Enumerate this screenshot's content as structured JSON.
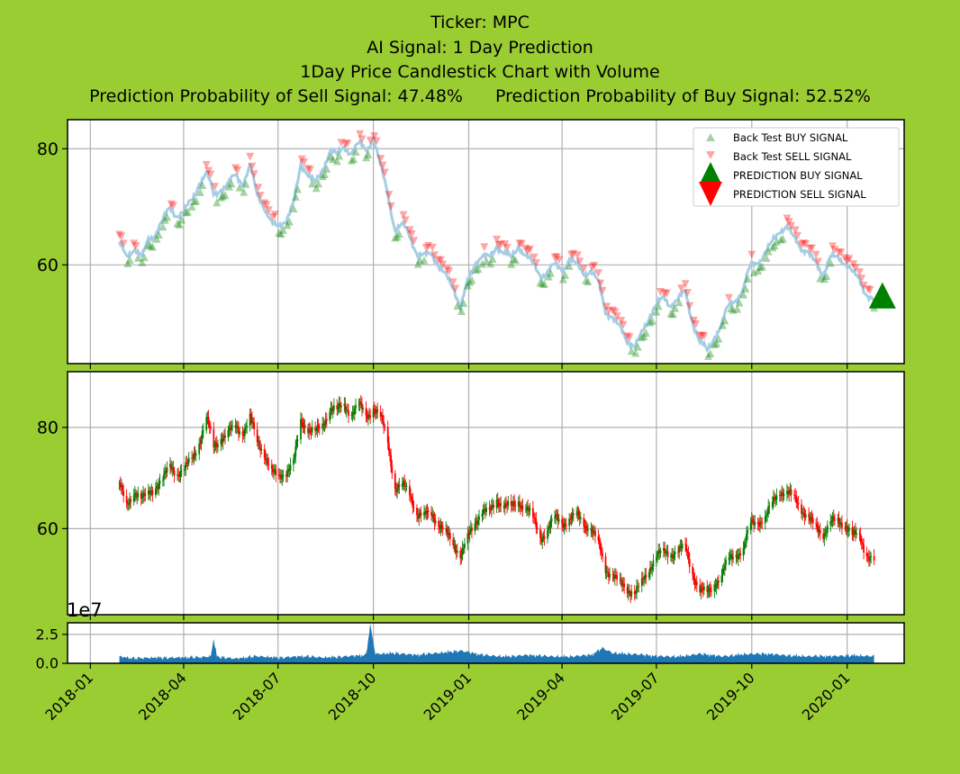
{
  "titles": {
    "ticker": "Ticker: MPC",
    "signal": "AI Signal: 1 Day Prediction",
    "chart": "1Day Price Candlestick Chart with Volume",
    "sell_prob": "Prediction Probability of Sell Signal: 47.48%",
    "buy_prob": "Prediction Probability of Buy Signal: 52.52%"
  },
  "colors": {
    "background": "#9acd32",
    "buy": "#008000",
    "sell": "#ff0000",
    "close_line": "#a6cde3",
    "volume": "#1f77b4",
    "grid": "#b0b0b0"
  },
  "chart_data": [
    {
      "type": "line",
      "panel": "signals",
      "xlim": [
        "2017-12-10",
        "2020-02-25"
      ],
      "ylim": [
        43,
        85
      ],
      "yticks": [
        60,
        80
      ],
      "grid": true,
      "legend": {
        "placement": "top-right",
        "entries": [
          "Back Test BUY SIGNAL",
          "Back Test SELL SIGNAL",
          "PREDICTION BUY SIGNAL",
          "PREDICTION SELL SIGNAL"
        ]
      },
      "close_series": [
        [
          "2018-01-29",
          64.0
        ],
        [
          "2018-02-05",
          61.0
        ],
        [
          "2018-02-12",
          63.0
        ],
        [
          "2018-02-20",
          61.5
        ],
        [
          "2018-02-26",
          64.0
        ],
        [
          "2018-03-05",
          65.5
        ],
        [
          "2018-03-12",
          68.0
        ],
        [
          "2018-03-19",
          69.5
        ],
        [
          "2018-03-26",
          68.5
        ],
        [
          "2018-04-02",
          69.5
        ],
        [
          "2018-04-09",
          71.0
        ],
        [
          "2018-04-16",
          74.0
        ],
        [
          "2018-04-23",
          76.0
        ],
        [
          "2018-04-30",
          72.0
        ],
        [
          "2018-05-07",
          73.0
        ],
        [
          "2018-05-14",
          74.0
        ],
        [
          "2018-05-21",
          75.5
        ],
        [
          "2018-05-28",
          74.0
        ],
        [
          "2018-06-04",
          77.0
        ],
        [
          "2018-06-11",
          72.0
        ],
        [
          "2018-06-18",
          70.0
        ],
        [
          "2018-06-25",
          67.0
        ],
        [
          "2018-07-02",
          66.5
        ],
        [
          "2018-07-09",
          68.0
        ],
        [
          "2018-07-16",
          70.5
        ],
        [
          "2018-07-23",
          77.0
        ],
        [
          "2018-07-30",
          76.0
        ],
        [
          "2018-08-06",
          74.0
        ],
        [
          "2018-08-13",
          76.0
        ],
        [
          "2018-08-20",
          80.0
        ],
        [
          "2018-08-27",
          79.0
        ],
        [
          "2018-09-03",
          80.0
        ],
        [
          "2018-09-10",
          79.5
        ],
        [
          "2018-09-17",
          81.0
        ],
        [
          "2018-09-24",
          79.5
        ],
        [
          "2018-10-01",
          82.0
        ],
        [
          "2018-10-08",
          77.0
        ],
        [
          "2018-10-15",
          72.0
        ],
        [
          "2018-10-22",
          66.0
        ],
        [
          "2018-10-29",
          67.0
        ],
        [
          "2018-11-05",
          65.0
        ],
        [
          "2018-11-12",
          62.0
        ],
        [
          "2018-11-19",
          61.5
        ],
        [
          "2018-11-26",
          62.0
        ],
        [
          "2018-12-03",
          60.0
        ],
        [
          "2018-12-10",
          58.0
        ],
        [
          "2018-12-17",
          56.0
        ],
        [
          "2018-12-24",
          53.0
        ],
        [
          "2018-12-31",
          57.0
        ],
        [
          "2019-01-07",
          60.0
        ],
        [
          "2019-01-14",
          62.0
        ],
        [
          "2019-01-21",
          61.0
        ],
        [
          "2019-01-28",
          63.0
        ],
        [
          "2019-02-04",
          62.5
        ],
        [
          "2019-02-11",
          61.0
        ],
        [
          "2019-02-18",
          63.0
        ],
        [
          "2019-02-25",
          62.0
        ],
        [
          "2019-03-04",
          60.0
        ],
        [
          "2019-03-11",
          58.0
        ],
        [
          "2019-03-18",
          59.0
        ],
        [
          "2019-03-25",
          60.0
        ],
        [
          "2019-04-01",
          59.0
        ],
        [
          "2019-04-08",
          61.0
        ],
        [
          "2019-04-15",
          60.0
        ],
        [
          "2019-04-22",
          58.5
        ],
        [
          "2019-04-29",
          59.0
        ],
        [
          "2019-05-06",
          57.0
        ],
        [
          "2019-05-13",
          52.0
        ],
        [
          "2019-05-20",
          51.0
        ],
        [
          "2019-05-27",
          49.0
        ],
        [
          "2019-06-03",
          47.0
        ],
        [
          "2019-06-10",
          46.0
        ],
        [
          "2019-06-17",
          48.0
        ],
        [
          "2019-06-24",
          51.0
        ],
        [
          "2019-07-01",
          53.5
        ],
        [
          "2019-07-08",
          54.0
        ],
        [
          "2019-07-15",
          53.0
        ],
        [
          "2019-07-22",
          54.5
        ],
        [
          "2019-07-29",
          55.0
        ],
        [
          "2019-08-05",
          50.0
        ],
        [
          "2019-08-12",
          47.0
        ],
        [
          "2019-08-19",
          45.0
        ],
        [
          "2019-08-26",
          47.5
        ],
        [
          "2019-09-02",
          50.0
        ],
        [
          "2019-09-09",
          53.0
        ],
        [
          "2019-09-16",
          54.0
        ],
        [
          "2019-09-23",
          56.0
        ],
        [
          "2019-09-30",
          60.0
        ],
        [
          "2019-10-07",
          60.5
        ],
        [
          "2019-10-14",
          62.0
        ],
        [
          "2019-10-21",
          64.0
        ],
        [
          "2019-10-28",
          66.0
        ],
        [
          "2019-11-04",
          66.5
        ],
        [
          "2019-11-11",
          64.5
        ],
        [
          "2019-11-18",
          63.0
        ],
        [
          "2019-11-25",
          62.0
        ],
        [
          "2019-12-02",
          60.0
        ],
        [
          "2019-12-09",
          58.5
        ],
        [
          "2019-12-16",
          61.5
        ],
        [
          "2019-12-23",
          61.0
        ],
        [
          "2019-12-30",
          60.5
        ],
        [
          "2020-01-06",
          59.0
        ],
        [
          "2020-01-13",
          57.0
        ],
        [
          "2020-01-20",
          55.0
        ],
        [
          "2020-01-27",
          54.0
        ]
      ],
      "prediction": {
        "signal": "buy",
        "date": "2020-02-04",
        "value": 54.5
      }
    },
    {
      "type": "line",
      "panel": "candlestick",
      "xlim": [
        "2017-12-10",
        "2020-02-25"
      ],
      "ylim": [
        43,
        91
      ],
      "yticks": [
        60,
        80
      ],
      "grid": true,
      "price_series": [
        [
          "2018-01-29",
          69.0
        ],
        [
          "2018-02-05",
          64.0
        ],
        [
          "2018-02-12",
          67.5
        ],
        [
          "2018-02-20",
          66.0
        ],
        [
          "2018-02-26",
          66.5
        ],
        [
          "2018-03-05",
          68.5
        ],
        [
          "2018-03-12",
          70.0
        ],
        [
          "2018-03-19",
          72.0
        ],
        [
          "2018-03-26",
          71.0
        ],
        [
          "2018-04-02",
          72.0
        ],
        [
          "2018-04-09",
          73.5
        ],
        [
          "2018-04-16",
          77.0
        ],
        [
          "2018-04-23",
          82.0
        ],
        [
          "2018-04-30",
          76.0
        ],
        [
          "2018-05-07",
          78.0
        ],
        [
          "2018-05-14",
          79.0
        ],
        [
          "2018-05-21",
          80.0
        ],
        [
          "2018-05-28",
          79.0
        ],
        [
          "2018-06-04",
          82.0
        ],
        [
          "2018-06-11",
          77.0
        ],
        [
          "2018-06-18",
          75.0
        ],
        [
          "2018-06-25",
          71.0
        ],
        [
          "2018-07-02",
          70.0
        ],
        [
          "2018-07-09",
          71.5
        ],
        [
          "2018-07-16",
          73.0
        ],
        [
          "2018-07-23",
          81.0
        ],
        [
          "2018-07-30",
          80.0
        ],
        [
          "2018-08-06",
          79.0
        ],
        [
          "2018-08-13",
          80.0
        ],
        [
          "2018-08-20",
          84.0
        ],
        [
          "2018-08-27",
          83.5
        ],
        [
          "2018-09-03",
          84.0
        ],
        [
          "2018-09-10",
          83.0
        ],
        [
          "2018-09-17",
          84.5
        ],
        [
          "2018-09-24",
          82.0
        ],
        [
          "2018-10-01",
          84.0
        ],
        [
          "2018-10-08",
          82.0
        ],
        [
          "2018-10-15",
          77.0
        ],
        [
          "2018-10-22",
          68.0
        ],
        [
          "2018-10-29",
          68.5
        ],
        [
          "2018-11-05",
          67.0
        ],
        [
          "2018-11-12",
          63.0
        ],
        [
          "2018-11-19",
          62.5
        ],
        [
          "2018-11-26",
          63.0
        ],
        [
          "2018-12-03",
          61.0
        ],
        [
          "2018-12-10",
          59.0
        ],
        [
          "2018-12-17",
          57.0
        ],
        [
          "2018-12-24",
          55.0
        ],
        [
          "2018-12-31",
          58.0
        ],
        [
          "2019-01-07",
          61.0
        ],
        [
          "2019-01-14",
          64.0
        ],
        [
          "2019-01-21",
          63.0
        ],
        [
          "2019-01-28",
          65.5
        ],
        [
          "2019-02-04",
          65.0
        ],
        [
          "2019-02-11",
          64.0
        ],
        [
          "2019-02-18",
          65.0
        ],
        [
          "2019-02-25",
          64.5
        ],
        [
          "2019-03-04",
          62.0
        ],
        [
          "2019-03-11",
          58.0
        ],
        [
          "2019-03-18",
          60.0
        ],
        [
          "2019-03-25",
          62.0
        ],
        [
          "2019-04-01",
          61.0
        ],
        [
          "2019-04-08",
          62.0
        ],
        [
          "2019-04-15",
          62.5
        ],
        [
          "2019-04-22",
          61.0
        ],
        [
          "2019-04-29",
          60.0
        ],
        [
          "2019-05-06",
          57.0
        ],
        [
          "2019-05-13",
          52.0
        ],
        [
          "2019-05-20",
          51.0
        ],
        [
          "2019-05-27",
          49.0
        ],
        [
          "2019-06-03",
          48.0
        ],
        [
          "2019-06-10",
          47.5
        ],
        [
          "2019-06-17",
          49.0
        ],
        [
          "2019-06-24",
          52.0
        ],
        [
          "2019-07-01",
          55.0
        ],
        [
          "2019-07-08",
          55.0
        ],
        [
          "2019-07-15",
          55.0
        ],
        [
          "2019-07-22",
          56.0
        ],
        [
          "2019-07-29",
          56.0
        ],
        [
          "2019-08-05",
          51.0
        ],
        [
          "2019-08-12",
          48.0
        ],
        [
          "2019-08-19",
          47.0
        ],
        [
          "2019-08-26",
          49.0
        ],
        [
          "2019-09-02",
          51.0
        ],
        [
          "2019-09-09",
          54.0
        ],
        [
          "2019-09-16",
          55.0
        ],
        [
          "2019-09-23",
          56.0
        ],
        [
          "2019-09-30",
          61.0
        ],
        [
          "2019-10-07",
          61.5
        ],
        [
          "2019-10-14",
          62.0
        ],
        [
          "2019-10-21",
          65.0
        ],
        [
          "2019-10-28",
          67.5
        ],
        [
          "2019-11-04",
          67.0
        ],
        [
          "2019-11-11",
          66.0
        ],
        [
          "2019-11-18",
          64.0
        ],
        [
          "2019-11-25",
          62.0
        ],
        [
          "2019-12-02",
          60.0
        ],
        [
          "2019-12-09",
          59.0
        ],
        [
          "2019-12-16",
          61.5
        ],
        [
          "2019-12-23",
          61.0
        ],
        [
          "2019-12-30",
          61.0
        ],
        [
          "2020-01-06",
          59.0
        ],
        [
          "2020-01-13",
          58.0
        ],
        [
          "2020-01-20",
          55.0
        ],
        [
          "2020-01-27",
          54.0
        ]
      ]
    },
    {
      "type": "area",
      "panel": "volume",
      "offset_label": "1e7",
      "ylim": [
        0,
        3.5
      ],
      "yticks": [
        0.0,
        2.5
      ],
      "ytick_labels": [
        "0.0",
        "2.5"
      ],
      "xtick_labels": [
        "2018-01",
        "2018-04",
        "2018-07",
        "2018-10",
        "2019-01",
        "2019-04",
        "2019-07",
        "2019-10",
        "2020-01"
      ],
      "xtick_dates": [
        "2018-01-01",
        "2018-04-01",
        "2018-07-01",
        "2018-10-01",
        "2019-01-01",
        "2019-04-01",
        "2019-07-01",
        "2019-10-01",
        "2020-01-01"
      ],
      "volume_series": [
        [
          "2018-01-29",
          0.6
        ],
        [
          "2018-02-12",
          0.4
        ],
        [
          "2018-03-05",
          0.5
        ],
        [
          "2018-03-26",
          0.5
        ],
        [
          "2018-04-16",
          0.5
        ],
        [
          "2018-04-27",
          0.6
        ],
        [
          "2018-04-30",
          2.1
        ],
        [
          "2018-05-03",
          0.6
        ],
        [
          "2018-05-21",
          0.4
        ],
        [
          "2018-06-11",
          0.6
        ],
        [
          "2018-07-02",
          0.5
        ],
        [
          "2018-07-23",
          0.6
        ],
        [
          "2018-08-13",
          0.5
        ],
        [
          "2018-09-03",
          0.6
        ],
        [
          "2018-09-24",
          0.7
        ],
        [
          "2018-09-28",
          3.3
        ],
        [
          "2018-10-03",
          0.8
        ],
        [
          "2018-10-22",
          0.9
        ],
        [
          "2018-11-12",
          0.7
        ],
        [
          "2018-12-03",
          0.9
        ],
        [
          "2018-12-24",
          1.1
        ],
        [
          "2019-01-14",
          0.7
        ],
        [
          "2019-02-04",
          0.6
        ],
        [
          "2019-02-25",
          0.7
        ],
        [
          "2019-03-18",
          0.6
        ],
        [
          "2019-04-08",
          0.6
        ],
        [
          "2019-04-29",
          0.7
        ],
        [
          "2019-05-10",
          1.3
        ],
        [
          "2019-05-20",
          0.9
        ],
        [
          "2019-06-10",
          0.8
        ],
        [
          "2019-07-01",
          0.6
        ],
        [
          "2019-07-22",
          0.6
        ],
        [
          "2019-08-12",
          0.8
        ],
        [
          "2019-09-02",
          0.6
        ],
        [
          "2019-09-23",
          0.8
        ],
        [
          "2019-10-14",
          0.8
        ],
        [
          "2019-11-04",
          0.7
        ],
        [
          "2019-11-25",
          0.6
        ],
        [
          "2019-12-16",
          0.6
        ],
        [
          "2020-01-06",
          0.7
        ],
        [
          "2020-01-27",
          0.6
        ]
      ]
    }
  ]
}
